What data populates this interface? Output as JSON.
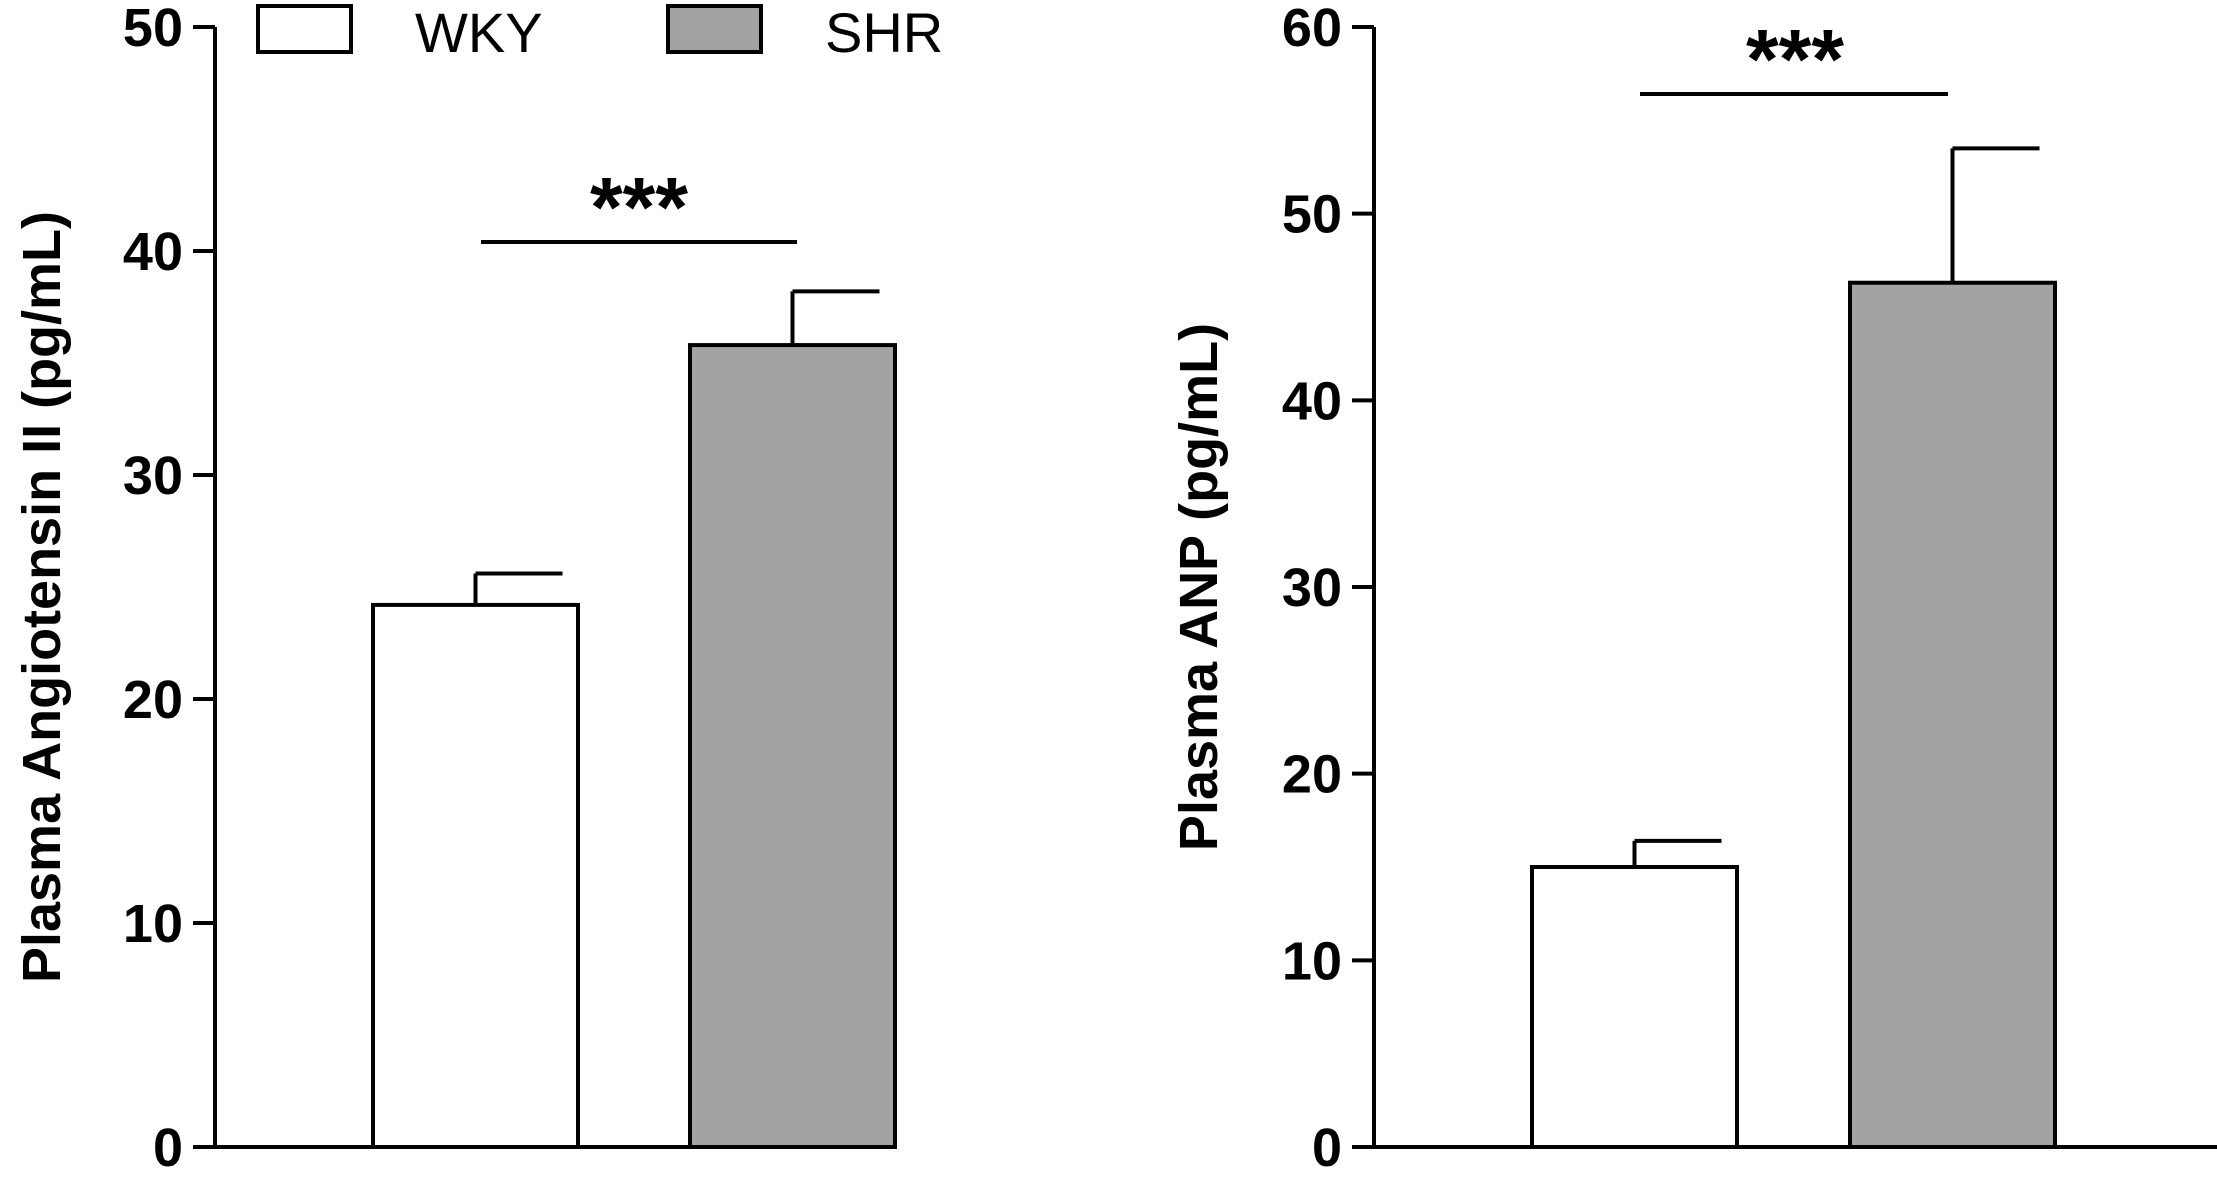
{
  "chart_data": [
    {
      "type": "bar",
      "categories": [
        "WKY",
        "SHR"
      ],
      "values": [
        24.2,
        35.8
      ],
      "errors": [
        1.4,
        2.4
      ],
      "ylabel": "Plasma Angiotensin II (pg/mL)",
      "ylim": [
        0,
        50
      ],
      "yticks": [
        0,
        10,
        20,
        30,
        40,
        50
      ],
      "significance": "***",
      "colors": [
        "#ffffff",
        "#a3a3a6"
      ]
    },
    {
      "type": "bar",
      "categories": [
        "WKY",
        "SHR"
      ],
      "values": [
        15.0,
        46.3
      ],
      "errors": [
        1.4,
        7.2
      ],
      "ylabel": "Plasma ANP (pg/mL)",
      "ylim": [
        0,
        60
      ],
      "yticks": [
        0,
        10,
        20,
        30,
        40,
        50,
        60
      ],
      "significance": "***",
      "colors": [
        "#ffffff",
        "#a3a3a6"
      ]
    }
  ],
  "legend": {
    "items": [
      {
        "label": "WKY",
        "color": "#ffffff"
      },
      {
        "label": "SHR",
        "color": "#a3a3a6"
      }
    ]
  }
}
